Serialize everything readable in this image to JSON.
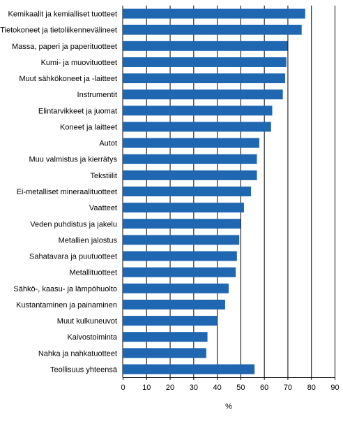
{
  "chart_data": {
    "type": "bar",
    "orientation": "horizontal",
    "categories": [
      "Kemikaalit ja kemialliset tuotteet",
      "Tietokoneet ja tietoliikennevälineet",
      "Massa, paperi ja paperituotteet",
      "Kumi- ja muovituotteet",
      "Muut sähkökoneet ja -laitteet",
      "Instrumentit",
      "Elintarvikkeet ja juomat",
      "Koneet ja laitteet",
      "Autot",
      "Muu valmistus ja kierrätys",
      "Tekstiilit",
      "Ei-metalliset mineraalituotteet",
      "Vaatteet",
      "Veden puhdistus ja jakelu",
      "Metallien jalostus",
      "Sahatavara ja puutuotteet",
      "Metallituotteet",
      "Sähkö-, kaasu- ja lämpöhuolto",
      "Kustantaminen ja painaminen",
      "Muut kulkuneuvot",
      "Kaivostoiminta",
      "Nahka ja nahkatuotteet",
      "Teollisuus yhteensä"
    ],
    "values": [
      77.5,
      76,
      70,
      69.5,
      69,
      68,
      63.5,
      63,
      58,
      57,
      57,
      54.5,
      51.5,
      50,
      49.5,
      48.5,
      48,
      45,
      43.5,
      40,
      36,
      35.5,
      56
    ],
    "xlabel": "%",
    "xlim": [
      0,
      90
    ],
    "xticks": [
      "0",
      "10",
      "20",
      "30",
      "40",
      "50",
      "60",
      "70",
      "80",
      "90"
    ],
    "grid": "vertical lines at major ticks",
    "bar_color": "#1f67b1"
  }
}
